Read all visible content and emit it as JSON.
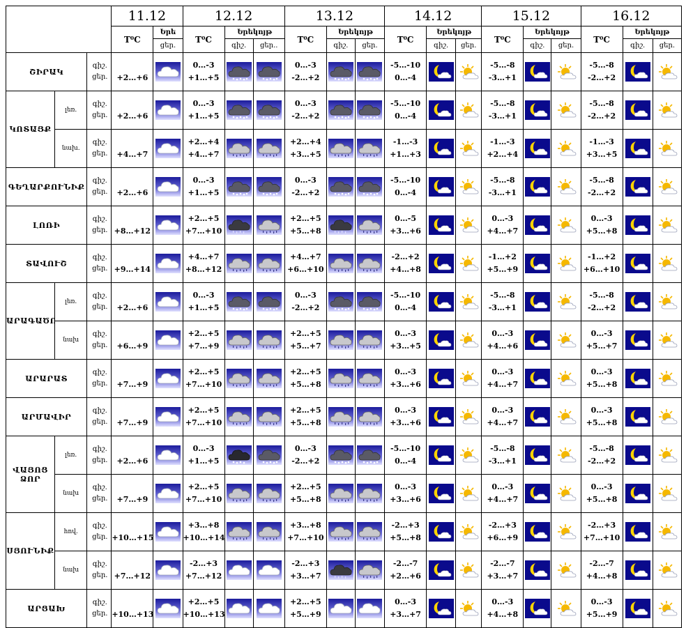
{
  "labels": {
    "temp": "T⁰C",
    "nighttime_day": "Երեկոյթ",
    "nighttime_short": "Երե",
    "night": "գիշ.",
    "day": "ցեր.",
    "day_cut": "ցեր.."
  },
  "dates": [
    "11.12",
    "12.12",
    "13.12",
    "14.12",
    "15.12",
    "16.12"
  ],
  "colors": {
    "border": "#000000",
    "icon_bg_top": "#1c1c9c",
    "icon_bg_bottom": "#e0e0ff",
    "sun": "#f5b800",
    "moon": "#ffd400"
  },
  "groups": [
    {
      "name": "ՇԻՐԱԿ",
      "rows": [
        {
          "sub": "",
          "t0": "+2…+6",
          "t1": "0…-3",
          "t1b": "+1…+5",
          "t2": "0…-3",
          "t2b": "-2…+2",
          "t3": "-5…-10",
          "t3b": "0…-4",
          "t4": "-5…-8",
          "t4b": "-3…+1",
          "t5": "-5…-8",
          "t5b": "-2…+2",
          "i0": "cloud-icon",
          "i1a": "snow-cloud-icon",
          "i1b": "snow-cloud-icon",
          "i2a": "snow-cloud-icon",
          "i2b": "snow-cloud-icon"
        }
      ]
    },
    {
      "name": "ԿՈՏԱՅՔ",
      "rows": [
        {
          "sub": "լեռ.",
          "t0": "+2…+6",
          "t1": "0…-3",
          "t1b": "+1…+5",
          "t2": "0…-3",
          "t2b": "-2…+2",
          "t3": "-5…-10",
          "t3b": "0…-4",
          "t4": "-5…-8",
          "t4b": "-3…+1",
          "t5": "-5…-8",
          "t5b": "-2…+2",
          "i0": "cloud-icon",
          "i1a": "snow-cloud-icon",
          "i1b": "snow-cloud-icon",
          "i2a": "snow-cloud-icon",
          "i2b": "snow-cloud-icon"
        },
        {
          "sub": "նախ.",
          "t0": "+4…+7",
          "t1": "+2…+4",
          "t1b": "+4…+7",
          "t2": "+2…+4",
          "t2b": "+3…+5",
          "t3": "-1…-3",
          "t3b": "+1…+3",
          "t4": "-1…-3",
          "t4b": "+2…+4",
          "t5": "-1…-3",
          "t5b": "+3…+5",
          "i0": "cloud-icon",
          "i1a": "rain-cloud-icon",
          "i1b": "rain-cloud-icon",
          "i2a": "rain-cloud-icon",
          "i2b": "rain-cloud-icon"
        }
      ]
    },
    {
      "name": "ԳԵՂԱՐՔՈՒՆԻՔ",
      "rows": [
        {
          "sub": "",
          "t0": "+2…+6",
          "t1": "0…-3",
          "t1b": "+1…+5",
          "t2": "0…-3",
          "t2b": "-2…+2",
          "t3": "-5…-10",
          "t3b": "0…-4",
          "t4": "-5…-8",
          "t4b": "-3…+1",
          "t5": "-5…-8",
          "t5b": "-2…+2",
          "i0": "cloud-icon",
          "i1a": "snow-cloud-icon",
          "i1b": "snow-cloud-icon",
          "i2a": "snow-cloud-icon",
          "i2b": "snow-cloud-icon"
        }
      ]
    },
    {
      "name": "ԼՈՌԻ",
      "rows": [
        {
          "sub": "",
          "t0": "+8…+12",
          "t1": "+2…+5",
          "t1b": "+7…+10",
          "t2": "+2…+5",
          "t2b": "+5…+8",
          "t3": "0…-5",
          "t3b": "+3…+6",
          "t4": "0…-3",
          "t4b": "+4…+7",
          "t5": "0…-3",
          "t5b": "+5…+8",
          "i0": "cloud-icon",
          "i1a": "dark-rain-cloud-icon",
          "i1b": "rain-cloud-icon",
          "i2a": "dark-rain-cloud-icon",
          "i2b": "rain-cloud-icon"
        }
      ]
    },
    {
      "name": "ՏԱՎՈՒՇ",
      "rows": [
        {
          "sub": "",
          "t0": "+9…+14",
          "t1": "+4…+7",
          "t1b": "+8…+12",
          "t2": "+4…+7",
          "t2b": "+6…+10",
          "t3": "-2…+2",
          "t3b": "+4…+8",
          "t4": "-1…+2",
          "t4b": "+5…+9",
          "t5": "-1…+2",
          "t5b": "+6…+10",
          "i0": "cloud-icon",
          "i1a": "rain-cloud-icon",
          "i1b": "rain-cloud-icon",
          "i2a": "rain-cloud-icon",
          "i2b": "rain-cloud-icon"
        }
      ]
    },
    {
      "name": "ԱՐԱԳԱԾՈՏՆ",
      "rows": [
        {
          "sub": "լեռ.",
          "t0": "+2…+6",
          "t1": "0…-3",
          "t1b": "+1…+5",
          "t2": "0…-3",
          "t2b": "-2…+2",
          "t3": "-5…-10",
          "t3b": "0…-4",
          "t4": "-5…-8",
          "t4b": "-3…+1",
          "t5": "-5…-8",
          "t5b": "-2…+2",
          "i0": "cloud-icon",
          "i1a": "snow-cloud-icon",
          "i1b": "snow-cloud-icon",
          "i2a": "snow-cloud-icon",
          "i2b": "snow-cloud-icon"
        },
        {
          "sub": "նախ",
          "t0": "+6…+9",
          "t1": "+2…+5",
          "t1b": "+7…+9",
          "t2": "+2…+5",
          "t2b": "+5…+7",
          "t3": "0…-3",
          "t3b": "+3…+5",
          "t4": "0…-3",
          "t4b": "+4…+6",
          "t5": "0…-3",
          "t5b": "+5…+7",
          "i0": "cloud-icon",
          "i1a": "rain-cloud-icon",
          "i1b": "rain-cloud-icon",
          "i2a": "rain-cloud-icon",
          "i2b": "rain-cloud-icon"
        }
      ]
    },
    {
      "name": "ԱՐԱՐԱՏ",
      "rows": [
        {
          "sub": "",
          "t0": "+7…+9",
          "t1": "+2…+5",
          "t1b": "+7…+10",
          "t2": "+2…+5",
          "t2b": "+5…+8",
          "t3": "0…-3",
          "t3b": "+3…+6",
          "t4": "0…-3",
          "t4b": "+4…+7",
          "t5": "0…-3",
          "t5b": "+5…+8",
          "i0": "cloud-icon",
          "i1a": "rain-cloud-icon",
          "i1b": "rain-cloud-icon",
          "i2a": "rain-cloud-icon",
          "i2b": "rain-cloud-icon"
        }
      ]
    },
    {
      "name": "ԱՐՄԱՎԻՐ",
      "rows": [
        {
          "sub": "",
          "t0": "+7…+9",
          "t1": "+2…+5",
          "t1b": "+7…+10",
          "t2": "+2…+5",
          "t2b": "+5…+8",
          "t3": "0…-3",
          "t3b": "+3…+6",
          "t4": "0…-3",
          "t4b": "+4…+7",
          "t5": "0…-3",
          "t5b": "+5…+8",
          "i0": "cloud-icon",
          "i1a": "rain-cloud-icon",
          "i1b": "rain-cloud-icon",
          "i2a": "rain-cloud-icon",
          "i2b": "rain-cloud-icon"
        }
      ]
    },
    {
      "name": "ՎԱՅՈՑ ՁՈՐ",
      "rows": [
        {
          "sub": "լեռ.",
          "t0": "+2…+6",
          "t1": "0…-3",
          "t1b": "+1…+5",
          "t2": "0…-3",
          "t2b": "-2…+2",
          "t3": "-5…-10",
          "t3b": "0…-4",
          "t4": "-5…-8",
          "t4b": "-3…+1",
          "t5": "-5…-8",
          "t5b": "-2…+2",
          "i0": "cloud-icon",
          "i1a": "dark-snow-cloud-icon",
          "i1b": "snow-cloud-icon",
          "i2a": "snow-cloud-icon",
          "i2b": "snow-cloud-icon"
        },
        {
          "sub": "նախ",
          "t0": "+7…+9",
          "t1": "+2…+5",
          "t1b": "+7…+10",
          "t2": "+2…+5",
          "t2b": "+5…+8",
          "t3": "0…-3",
          "t3b": "+3…+6",
          "t4": "0…-3",
          "t4b": "+4…+7",
          "t5": "0…-3",
          "t5b": "+5…+8",
          "i0": "cloud-icon",
          "i1a": "rain-cloud-icon",
          "i1b": "rain-cloud-icon",
          "i2a": "rain-cloud-icon",
          "i2b": "rain-cloud-icon"
        }
      ]
    },
    {
      "name": "ՍՅՈՒՆԻՔ",
      "rows": [
        {
          "sub": "հով.",
          "t0": "+10…+15",
          "t1": "+3…+8",
          "t1b": "+10…+14",
          "t2": "+3…+8",
          "t2b": "+7…+10",
          "t3": "-2…+3",
          "t3b": "+5…+8",
          "t4": "-2…+3",
          "t4b": "+6…+9",
          "t5": "-2…+3",
          "t5b": "+7…+10",
          "i0": "cloud-icon",
          "i1a": "rain-cloud-icon",
          "i1b": "rain-cloud-icon",
          "i2a": "rain-cloud-icon",
          "i2b": "rain-cloud-icon"
        },
        {
          "sub": "նախ",
          "t0": "+7…+12",
          "t1": "-2…+3",
          "t1b": "+7…+12",
          "t2": "-2…+3",
          "t2b": "+3…+7",
          "t3": "-2…-7",
          "t3b": "+2…+6",
          "t4": "-2…-7",
          "t4b": "+3…+7",
          "t5": "-2…-7",
          "t5b": "+4…+8",
          "i0": "cloud-icon",
          "i1a": "cloud-icon",
          "i1b": "cloud-icon",
          "i2a": "dark-rain-cloud-icon",
          "i2b": "rain-cloud-icon"
        }
      ]
    },
    {
      "name": "ԱՐՑԱԽ",
      "rows": [
        {
          "sub": "",
          "t0": "+10…+13",
          "t1": "+2…+5",
          "t1b": "+10…+13",
          "t2": "+2…+5",
          "t2b": "+5…+9",
          "t3": "0…-3",
          "t3b": "+3…+7",
          "t4": "0…-3",
          "t4b": "+4…+8",
          "t5": "0…-3",
          "t5b": "+5…+9",
          "i0": "cloud-icon",
          "i1a": "cloud-icon",
          "i1b": "cloud-icon",
          "i2a": "cloud-icon",
          "i2b": "cloud-icon"
        }
      ]
    }
  ]
}
